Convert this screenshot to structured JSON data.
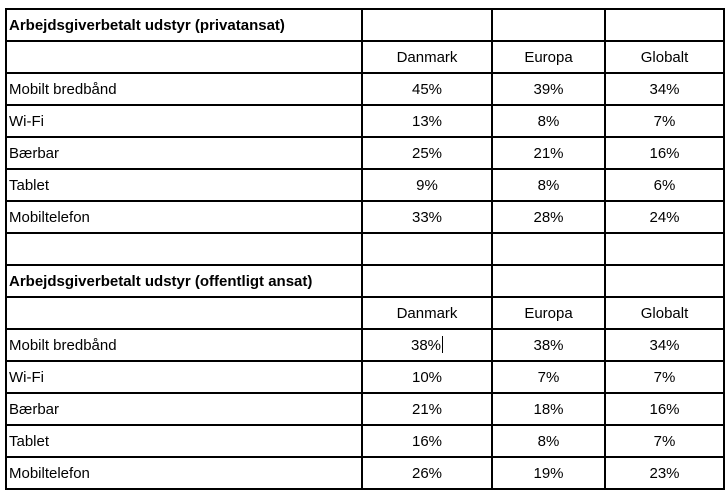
{
  "page": {
    "background_color": "#ffffff",
    "border_color": "#000000",
    "text_color": "#000000"
  },
  "table": {
    "sections": [
      {
        "title": "Arbejdsgiverbetalt udstyr (privatansat)",
        "col_headers": [
          "Danmark",
          "Europa",
          "Globalt"
        ],
        "rows": [
          {
            "label": "Mobilt bredbånd",
            "values": [
              "45%",
              "39%",
              "34%"
            ]
          },
          {
            "label": "Wi-Fi",
            "values": [
              "13%",
              "8%",
              "7%"
            ]
          },
          {
            "label": "Bærbar",
            "values": [
              "25%",
              "21%",
              "16%"
            ]
          },
          {
            "label": "Tablet",
            "values": [
              "9%",
              "8%",
              "6%"
            ]
          },
          {
            "label": "Mobiltelefon",
            "values": [
              "33%",
              "28%",
              "24%"
            ]
          }
        ]
      },
      {
        "title": "Arbejdsgiverbetalt udstyr (offentligt ansat)",
        "col_headers": [
          "Danmark",
          "Europa",
          "Globalt"
        ],
        "rows": [
          {
            "label": "Mobilt bredbånd",
            "values": [
              "38%",
              "38%",
              "34%"
            ]
          },
          {
            "label": "Wi-Fi",
            "values": [
              "10%",
              "7%",
              "7%"
            ]
          },
          {
            "label": "Bærbar",
            "values": [
              "21%",
              "18%",
              "16%"
            ]
          },
          {
            "label": "Tablet",
            "values": [
              "16%",
              "8%",
              "7%"
            ]
          },
          {
            "label": "Mobiltelefon",
            "values": [
              "26%",
              "19%",
              "23%"
            ]
          }
        ]
      }
    ],
    "text_cursor": {
      "section_index": 1,
      "row_index": 0,
      "value_index": 0
    }
  },
  "chart_data": [
    {
      "type": "table",
      "title": "Arbejdsgiverbetalt udstyr (privatansat)",
      "columns": [
        "",
        "Danmark",
        "Europa",
        "Globalt"
      ],
      "rows": [
        [
          "Mobilt bredbånd",
          "45%",
          "39%",
          "34%"
        ],
        [
          "Wi-Fi",
          "13%",
          "8%",
          "7%"
        ],
        [
          "Bærbar",
          "25%",
          "21%",
          "16%"
        ],
        [
          "Tablet",
          "9%",
          "8%",
          "6%"
        ],
        [
          "Mobiltelefon",
          "33%",
          "28%",
          "24%"
        ]
      ]
    },
    {
      "type": "table",
      "title": "Arbejdsgiverbetalt udstyr (offentligt ansat)",
      "columns": [
        "",
        "Danmark",
        "Europa",
        "Globalt"
      ],
      "rows": [
        [
          "Mobilt bredbånd",
          "38%",
          "38%",
          "34%"
        ],
        [
          "Wi-Fi",
          "10%",
          "7%",
          "7%"
        ],
        [
          "Bærbar",
          "21%",
          "18%",
          "16%"
        ],
        [
          "Tablet",
          "16%",
          "8%",
          "7%"
        ],
        [
          "Mobiltelefon",
          "26%",
          "19%",
          "23%"
        ]
      ]
    }
  ]
}
